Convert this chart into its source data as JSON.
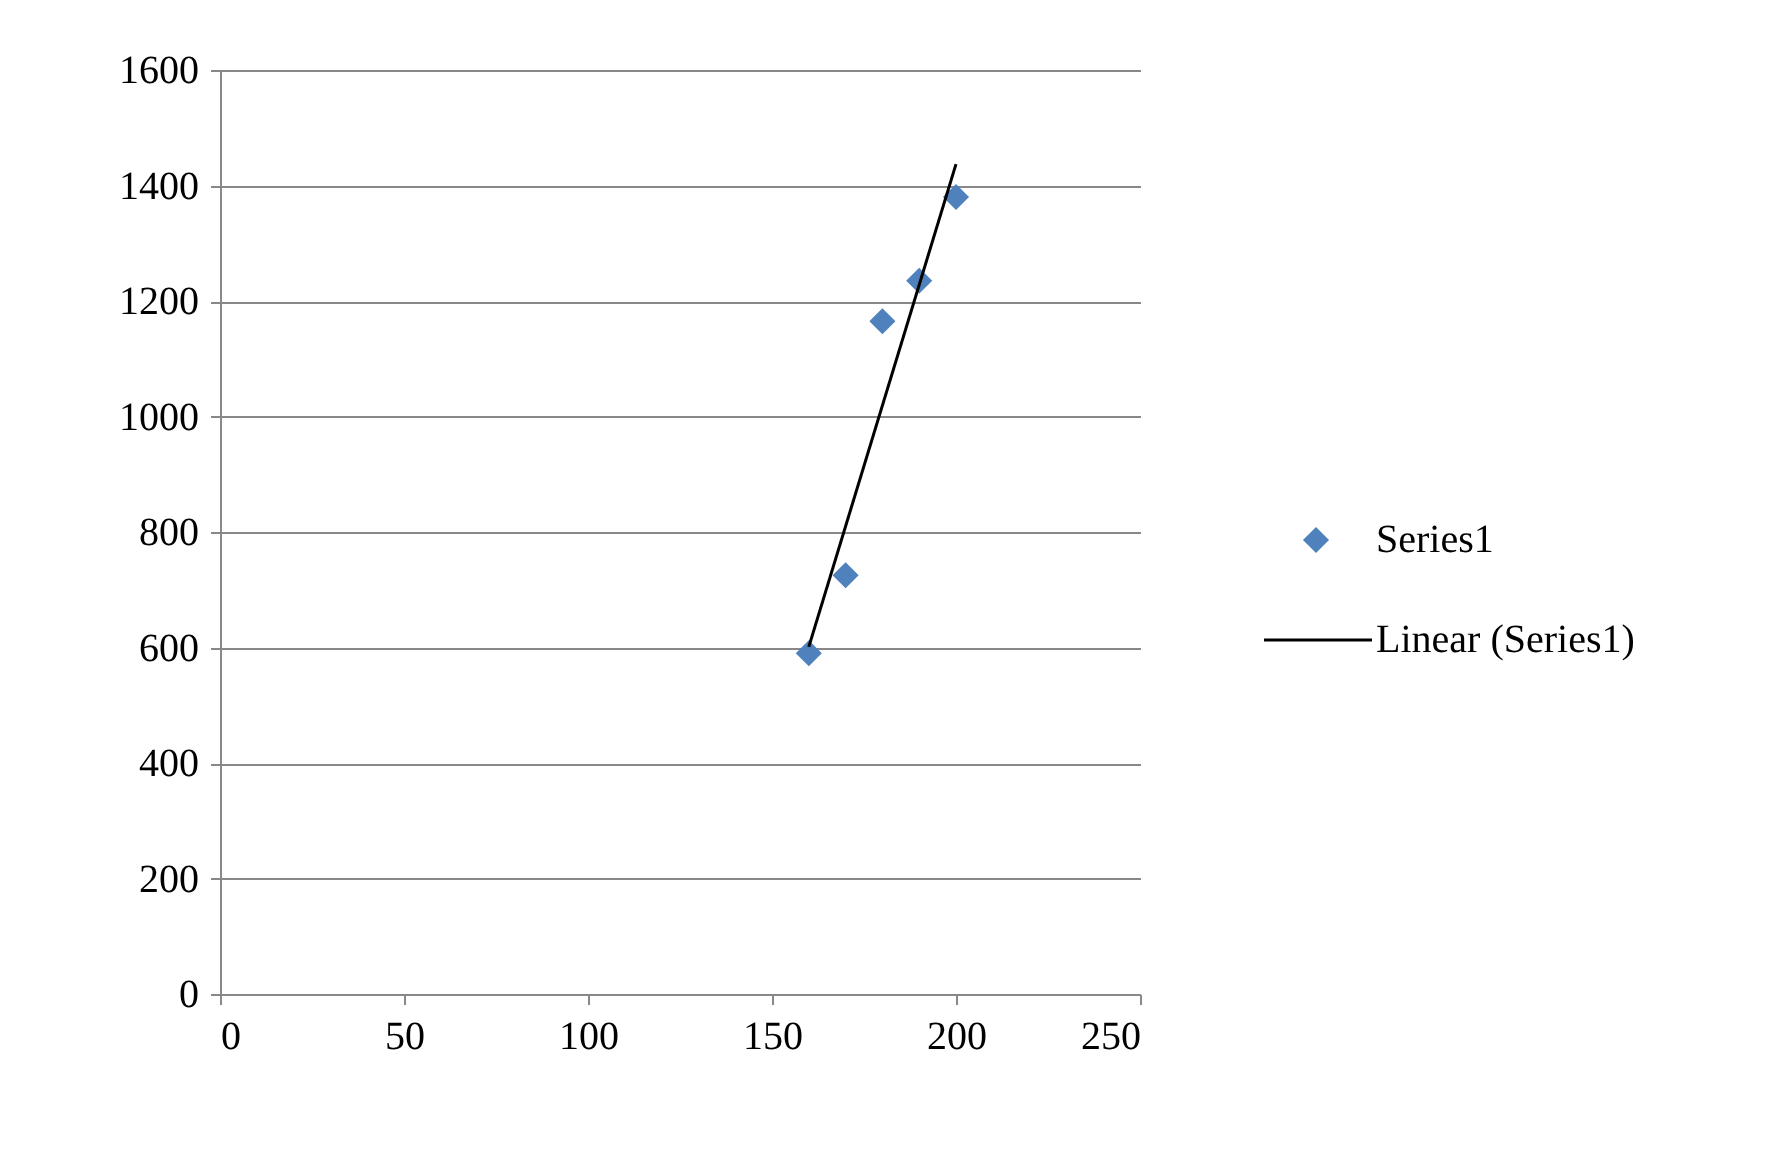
{
  "chart_data": {
    "type": "scatter",
    "xlim": [
      0,
      250
    ],
    "xticks": [
      0,
      50,
      100,
      150,
      200,
      250
    ],
    "ylim": [
      0,
      1600
    ],
    "yticks": [
      0,
      200,
      400,
      600,
      800,
      1000,
      1200,
      1400,
      1600
    ],
    "grid": "y",
    "legend": "right",
    "series": [
      {
        "name": "Series1",
        "type": "scatter",
        "color": "#4f81bd",
        "marker": "diamond",
        "x": [
          160,
          170,
          180,
          190,
          200
        ],
        "values": [
          590,
          725,
          1165,
          1235,
          1380
        ]
      },
      {
        "name": "Linear (Series1)",
        "type": "line",
        "color": "#000000",
        "marker": "none",
        "x": [
          160,
          200
        ],
        "values": [
          601,
          1437
        ]
      }
    ]
  }
}
